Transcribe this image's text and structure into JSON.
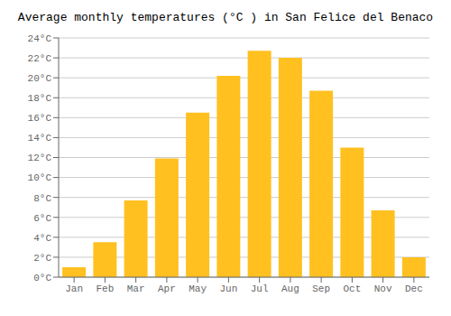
{
  "chart_data": {
    "type": "bar",
    "title": "Average monthly temperatures (°C ) in San Felice del Benaco",
    "categories": [
      "Jan",
      "Feb",
      "Mar",
      "Apr",
      "May",
      "Jun",
      "Jul",
      "Aug",
      "Sep",
      "Oct",
      "Nov",
      "Dec"
    ],
    "values": [
      1.0,
      3.5,
      7.7,
      11.9,
      16.5,
      20.2,
      22.7,
      22.0,
      18.7,
      13.0,
      6.7,
      2.0
    ],
    "color": "#FFC020",
    "ylim": [
      0,
      24
    ],
    "yticks": [
      {
        "value": 0,
        "label": "0°C"
      },
      {
        "value": 2,
        "label": "2°C"
      },
      {
        "value": 4,
        "label": "4°C"
      },
      {
        "value": 6,
        "label": "6°C"
      },
      {
        "value": 8,
        "label": "8°C"
      },
      {
        "value": 10,
        "label": "10°C"
      },
      {
        "value": 12,
        "label": "12°C"
      },
      {
        "value": 14,
        "label": "14°C"
      },
      {
        "value": 16,
        "label": "16°C"
      },
      {
        "value": 18,
        "label": "18°C"
      },
      {
        "value": 20,
        "label": "20°C"
      },
      {
        "value": 22,
        "label": "22°C"
      },
      {
        "value": 24,
        "label": "24°C"
      }
    ],
    "grid": true
  }
}
